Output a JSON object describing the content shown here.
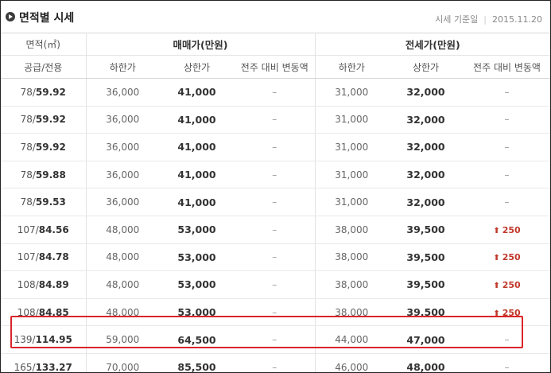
{
  "header": {
    "title": "면적별 시세",
    "basis_label": "시세 기준일",
    "basis_date": "2015.11.20"
  },
  "table": {
    "area_header": "면적(㎡)",
    "sale_group": "매매가(만원)",
    "jeonse_group": "전세가(만원)",
    "sub_area": "공급/전용",
    "sub_low": "하한가",
    "sub_high": "상한가",
    "sub_change": "전주 대비 변동액",
    "rows": [
      {
        "supply": "78",
        "exclusive": "59.92",
        "sale_low": "36,000",
        "sale_high": "41,000",
        "sale_change": "–",
        "jeonse_low": "31,000",
        "jeonse_high": "32,000",
        "jeonse_change": "–"
      },
      {
        "supply": "78",
        "exclusive": "59.92",
        "sale_low": "36,000",
        "sale_high": "41,000",
        "sale_change": "–",
        "jeonse_low": "31,000",
        "jeonse_high": "32,000",
        "jeonse_change": "–"
      },
      {
        "supply": "78",
        "exclusive": "59.92",
        "sale_low": "36,000",
        "sale_high": "41,000",
        "sale_change": "–",
        "jeonse_low": "31,000",
        "jeonse_high": "32,000",
        "jeonse_change": "–"
      },
      {
        "supply": "78",
        "exclusive": "59.88",
        "sale_low": "36,000",
        "sale_high": "41,000",
        "sale_change": "–",
        "jeonse_low": "31,000",
        "jeonse_high": "32,000",
        "jeonse_change": "–"
      },
      {
        "supply": "78",
        "exclusive": "59.53",
        "sale_low": "36,000",
        "sale_high": "41,000",
        "sale_change": "–",
        "jeonse_low": "31,000",
        "jeonse_high": "32,000",
        "jeonse_change": "–"
      },
      {
        "supply": "107",
        "exclusive": "84.56",
        "sale_low": "48,000",
        "sale_high": "53,000",
        "sale_change": "–",
        "jeonse_low": "38,000",
        "jeonse_high": "39,500",
        "jeonse_change": "250"
      },
      {
        "supply": "107",
        "exclusive": "84.78",
        "sale_low": "48,000",
        "sale_high": "53,000",
        "sale_change": "–",
        "jeonse_low": "38,000",
        "jeonse_high": "39,500",
        "jeonse_change": "250"
      },
      {
        "supply": "108",
        "exclusive": "84.89",
        "sale_low": "48,000",
        "sale_high": "53,000",
        "sale_change": "–",
        "jeonse_low": "38,000",
        "jeonse_high": "39,500",
        "jeonse_change": "250"
      },
      {
        "supply": "108",
        "exclusive": "84.85",
        "sale_low": "48,000",
        "sale_high": "53,000",
        "sale_change": "–",
        "jeonse_low": "38,000",
        "jeonse_high": "39,500",
        "jeonse_change": "250"
      },
      {
        "supply": "139",
        "exclusive": "114.95",
        "sale_low": "59,000",
        "sale_high": "64,500",
        "sale_change": "–",
        "jeonse_low": "44,000",
        "jeonse_high": "47,000",
        "jeonse_change": "–"
      },
      {
        "supply": "165",
        "exclusive": "133.27",
        "sale_low": "70,000",
        "sale_high": "85,500",
        "sale_change": "–",
        "jeonse_low": "46,000",
        "jeonse_high": "48,000",
        "jeonse_change": "–"
      }
    ]
  },
  "colors": {
    "highlight_border": "#d9252a",
    "increase": "#c0392b"
  },
  "icons": {
    "title_bullet": "circle-arrow-right-icon",
    "increase": "up-arrow-icon"
  }
}
